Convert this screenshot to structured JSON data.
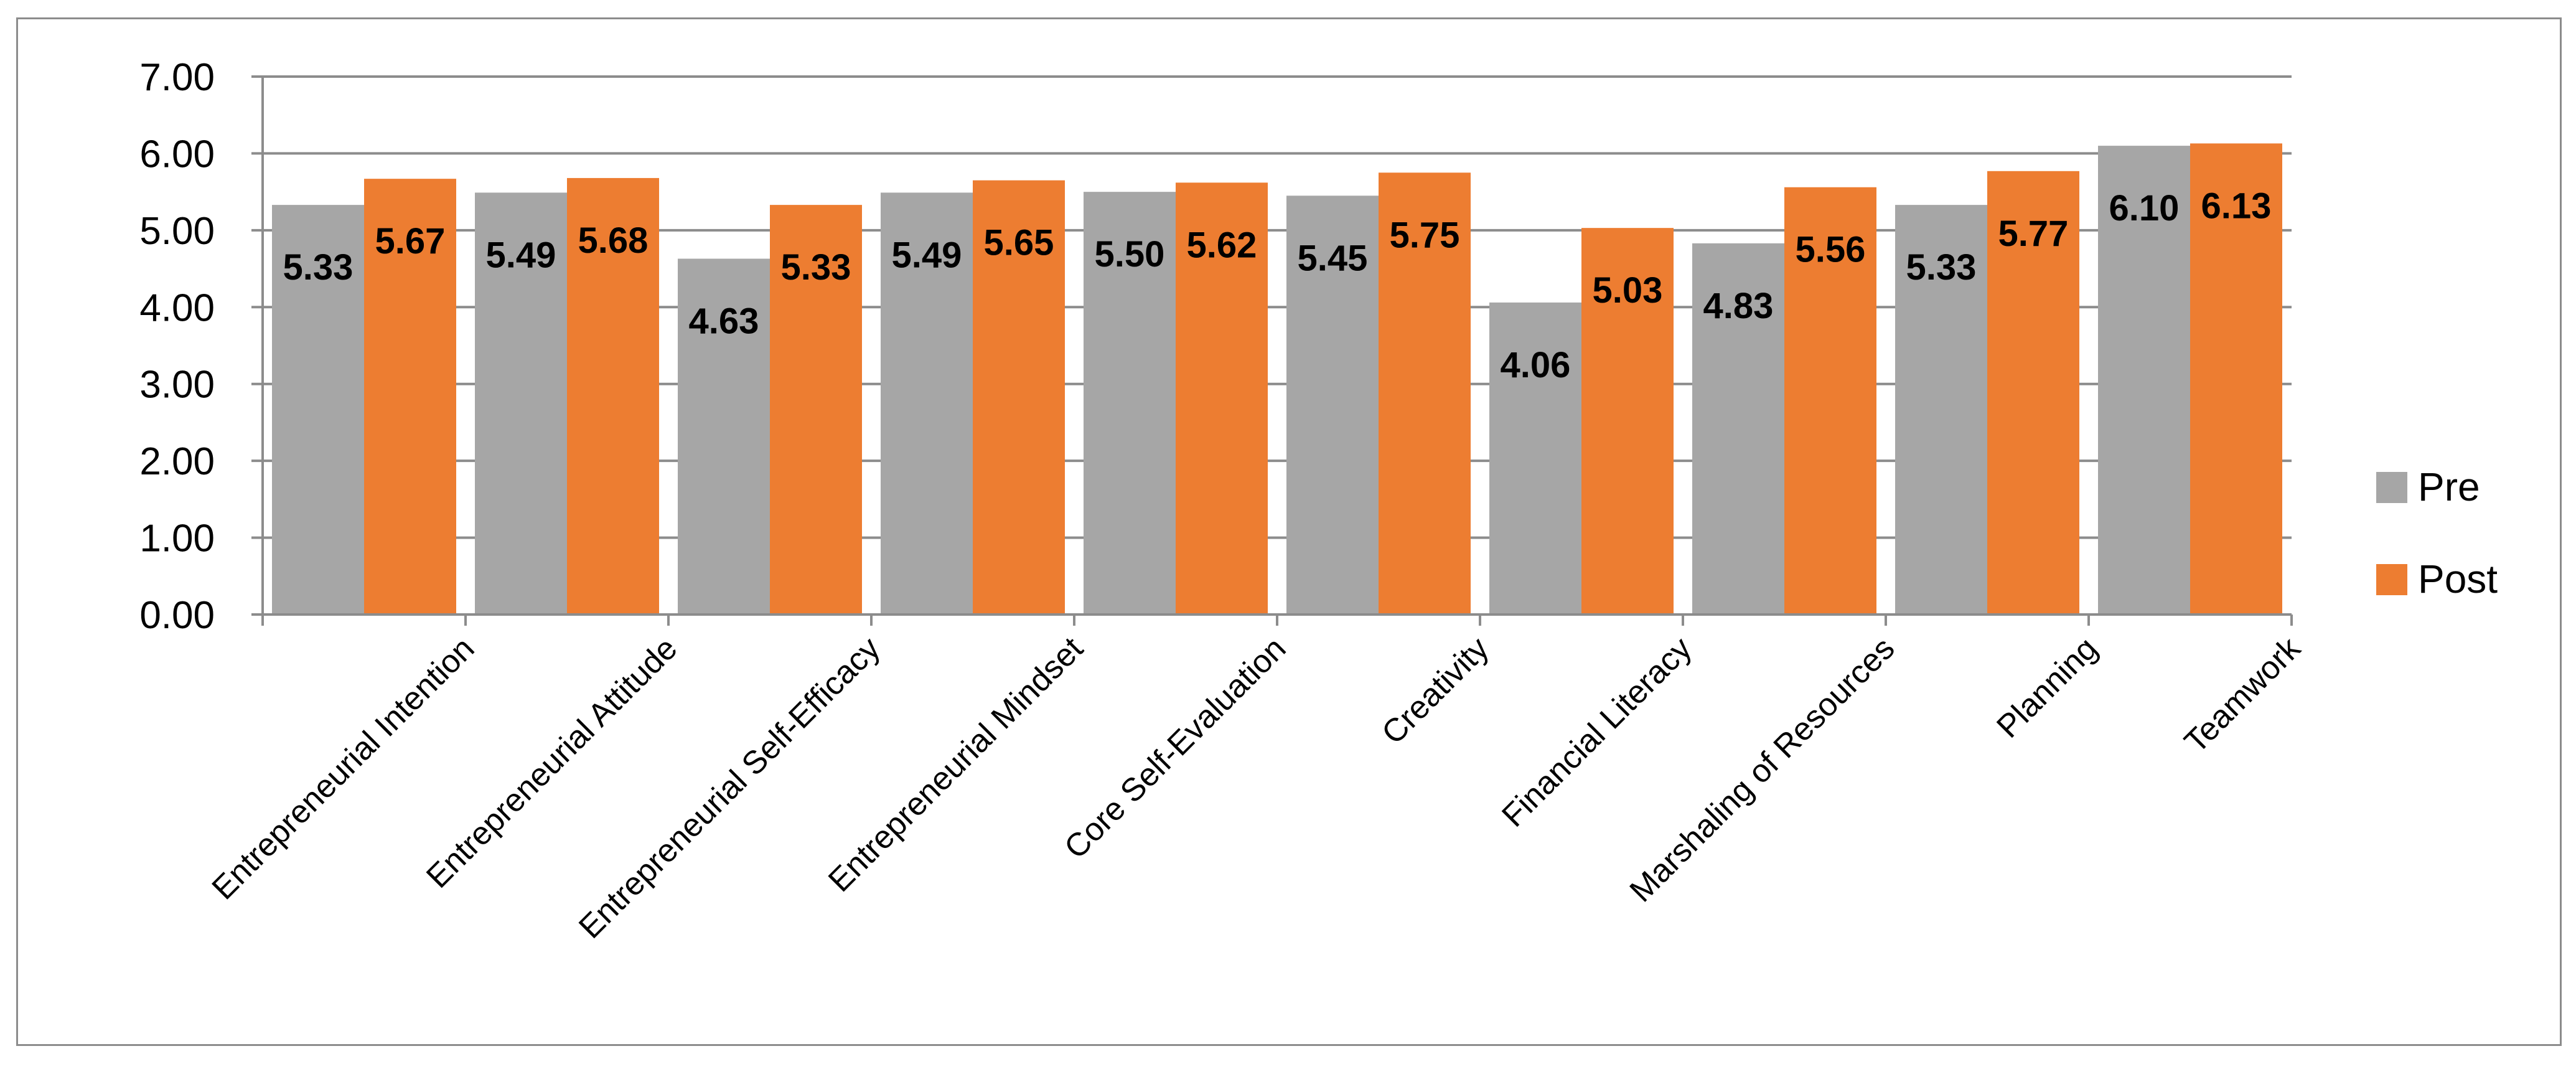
{
  "chart_data": {
    "type": "bar",
    "title": "",
    "xlabel": "",
    "ylabel": "",
    "ylim": [
      0,
      7
    ],
    "yticks": [
      0,
      1,
      2,
      3,
      4,
      5,
      6,
      7
    ],
    "ytick_labels": [
      "0.00",
      "1.00",
      "2.00",
      "3.00",
      "4.00",
      "5.00",
      "6.00",
      "7.00"
    ],
    "grid": true,
    "legend_position": "right",
    "categories": [
      "Entrepreneurial Intention",
      "Entrepreneurial Attitude",
      "Entrepreneurial Self-Efficacy",
      "Entrepreneurial Mindset",
      "Core Self-Evaluation",
      "Creativity",
      "Financial Literacy",
      "Marshaling of Resources",
      "Planning",
      "Teamwork"
    ],
    "series": [
      {
        "name": "Pre",
        "color": "#a6a6a6",
        "values": [
          5.33,
          5.49,
          4.63,
          5.49,
          5.5,
          5.45,
          4.06,
          4.83,
          5.33,
          6.1
        ],
        "labels": [
          "5.33",
          "5.49",
          "4.63",
          "5.49",
          "5.50",
          "5.45",
          "4.06",
          "4.83",
          "5.33",
          "6.10"
        ]
      },
      {
        "name": "Post",
        "color": "#ed7d31",
        "values": [
          5.67,
          5.68,
          5.33,
          5.65,
          5.62,
          5.75,
          5.03,
          5.56,
          5.77,
          6.13
        ],
        "labels": [
          "5.67",
          "5.68",
          "5.33",
          "5.65",
          "5.62",
          "5.75",
          "5.03",
          "5.56",
          "5.77",
          "6.13"
        ]
      }
    ]
  }
}
